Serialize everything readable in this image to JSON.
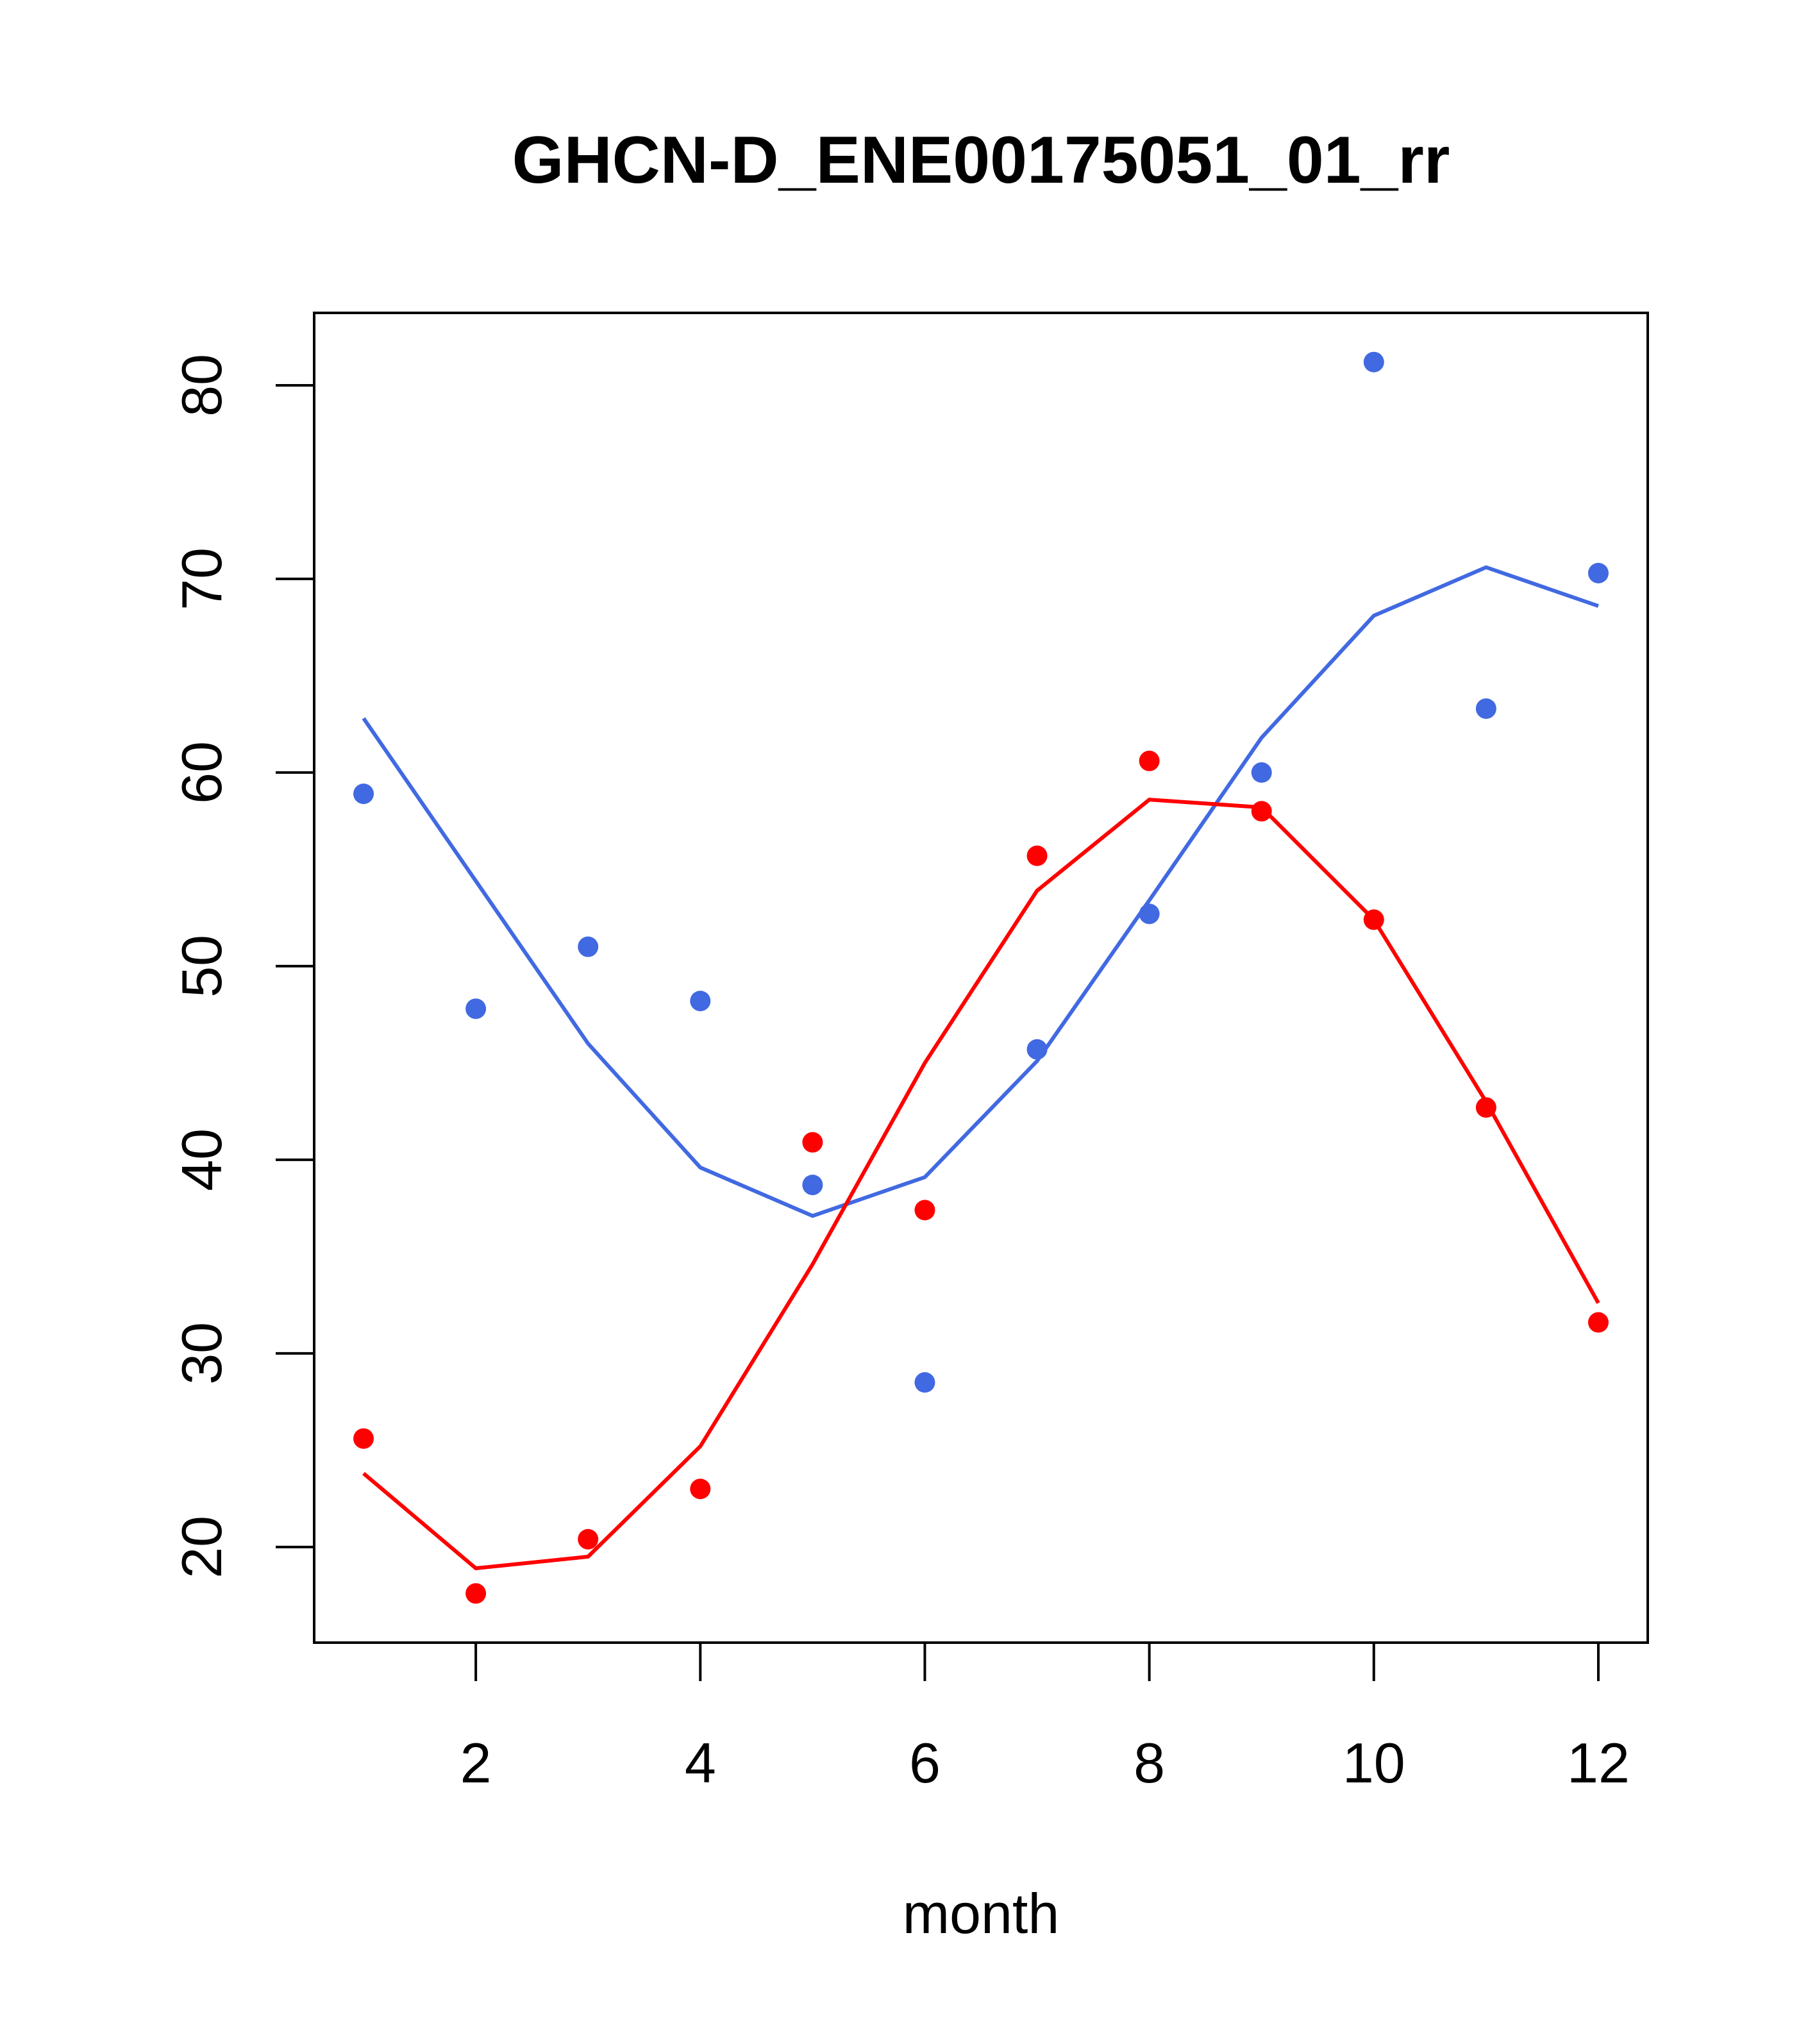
{
  "chart_data": {
    "type": "scatter",
    "title": "GHCN-D_ENE00175051_01_rr",
    "xlabel": "month",
    "ylabel": "",
    "xlim": [
      0.56,
      12.44
    ],
    "ylim": [
      15.06,
      83.74
    ],
    "xticks": [
      2,
      4,
      6,
      8,
      10,
      12
    ],
    "yticks": [
      20,
      30,
      40,
      50,
      60,
      70,
      80
    ],
    "grid": false,
    "legend": "none",
    "x": [
      1,
      2,
      3,
      4,
      5,
      6,
      7,
      8,
      9,
      10,
      11,
      12
    ],
    "series": [
      {
        "name": "blue points",
        "kind": "points",
        "color": "#4169E1",
        "values": [
          58.9,
          47.8,
          51.0,
          48.2,
          38.7,
          28.5,
          45.7,
          52.7,
          60.0,
          81.2,
          63.3,
          70.3
        ]
      },
      {
        "name": "blue line",
        "kind": "line",
        "color": "#4169E1",
        "values": [
          62.8,
          54.4,
          46.0,
          39.6,
          37.1,
          39.1,
          45.1,
          53.4,
          61.8,
          68.1,
          70.6,
          68.6
        ]
      },
      {
        "name": "red points",
        "kind": "points",
        "color": "#FF0000",
        "values": [
          25.6,
          17.6,
          20.4,
          23.0,
          40.9,
          37.4,
          55.7,
          60.6,
          58.0,
          52.4,
          42.7,
          31.6
        ]
      },
      {
        "name": "red line",
        "kind": "line",
        "color": "#FF0000",
        "values": [
          23.8,
          18.9,
          19.5,
          25.2,
          34.6,
          45.0,
          53.9,
          58.6,
          58.2,
          52.4,
          43.0,
          32.6
        ]
      }
    ]
  }
}
